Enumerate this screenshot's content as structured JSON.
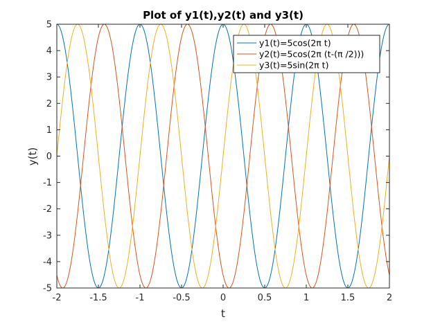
{
  "chart_data": {
    "type": "line",
    "title": "Plot of y1(t),y2(t) and y3(t)",
    "xlabel": "t",
    "ylabel": "y(t)",
    "xlim": [
      -2,
      2
    ],
    "ylim": [
      -5,
      5
    ],
    "xticks": [
      "-2",
      "-1.5",
      "-1",
      "-0.5",
      "0",
      "0.5",
      "1",
      "1.5",
      "2"
    ],
    "yticks": [
      "-5",
      "-4",
      "-3",
      "-2",
      "-1",
      "0",
      "1",
      "2",
      "3",
      "4",
      "5"
    ],
    "grid": false,
    "legend_position": "top-right",
    "series": [
      {
        "name": "y1(t)=5cos(2π t)",
        "color": "#0072BD",
        "x": [
          -2,
          -1.75,
          -1.5,
          -1.25,
          -1,
          -0.75,
          -0.5,
          -0.25,
          0,
          0.25,
          0.5,
          0.75,
          1,
          1.25,
          1.5,
          1.75,
          2
        ],
        "y": [
          5,
          0,
          -5,
          0,
          5,
          0,
          -5,
          0,
          5,
          0,
          -5,
          0,
          5,
          0,
          -5,
          0,
          5
        ]
      },
      {
        "name": "y2(t)=5cos(2π (t-(π /2)))",
        "color": "#D95319",
        "x": [
          -1.929,
          -1.679,
          -1.429,
          -1.179,
          -0.929,
          -0.679,
          -0.429,
          -0.179,
          0.071,
          0.321,
          0.571,
          0.821,
          1.071,
          1.321,
          1.571,
          1.821
        ],
        "y": [
          -5,
          0,
          5,
          0,
          -5,
          0,
          5,
          0,
          -5,
          0,
          5,
          0,
          -5,
          0,
          5,
          0
        ]
      },
      {
        "name": "y3(t)=5sin(2π t)",
        "color": "#EDB120",
        "x": [
          -2,
          -1.75,
          -1.5,
          -1.25,
          -1,
          -0.75,
          -0.5,
          -0.25,
          0,
          0.25,
          0.5,
          0.75,
          1,
          1.25,
          1.5,
          1.75,
          2
        ],
        "y": [
          0,
          5,
          0,
          -5,
          0,
          5,
          0,
          -5,
          0,
          5,
          0,
          -5,
          0,
          5,
          0,
          -5,
          0
        ]
      }
    ]
  }
}
